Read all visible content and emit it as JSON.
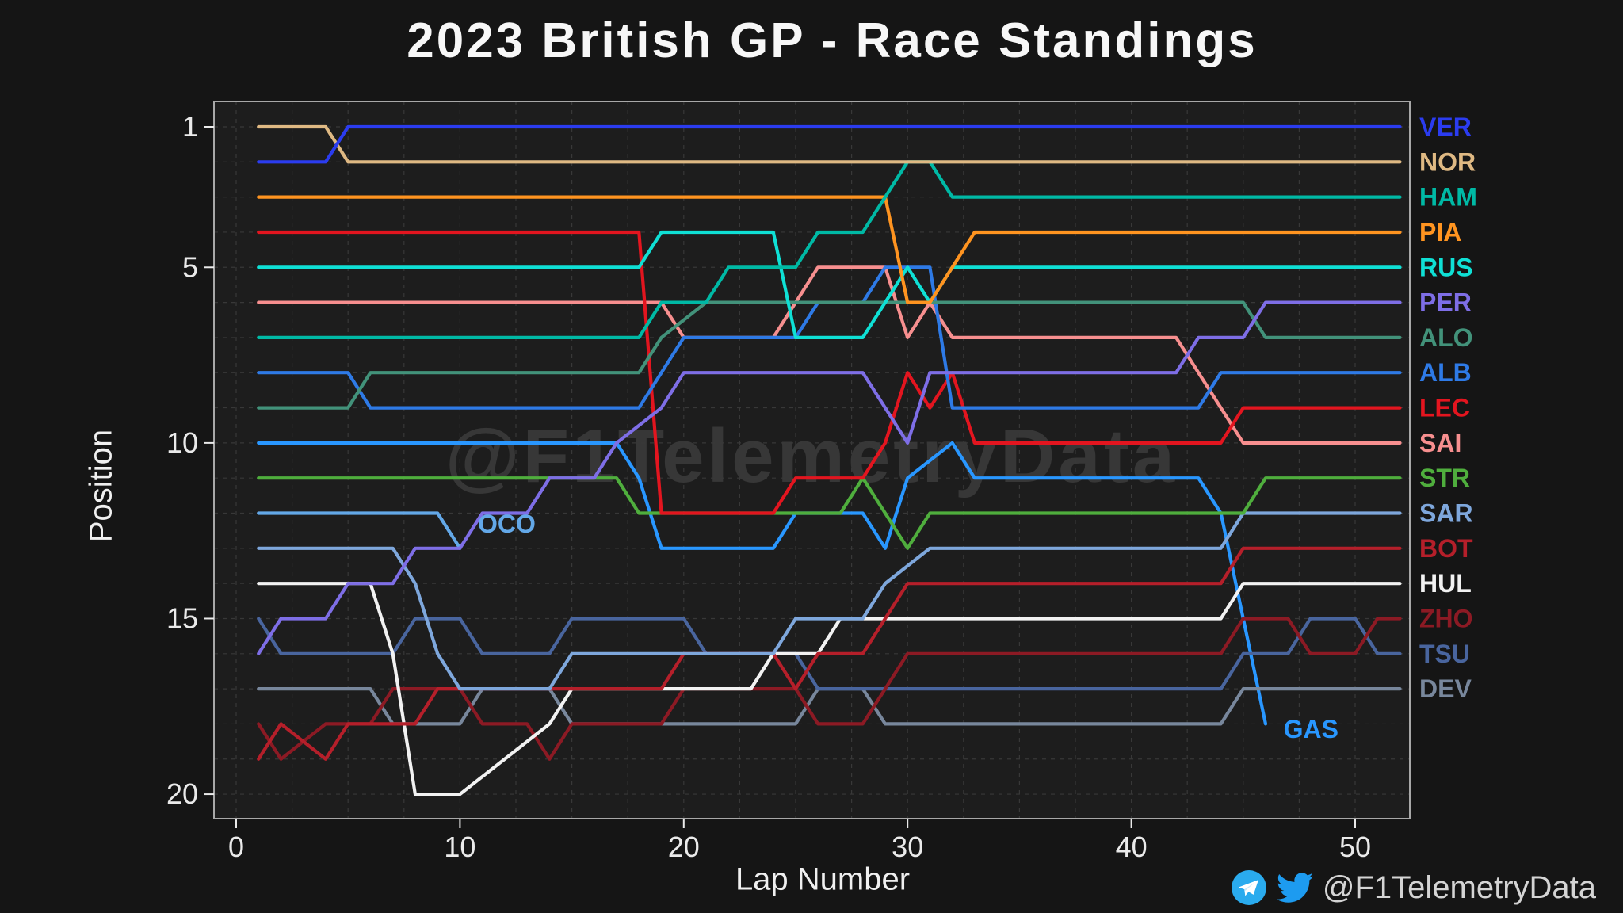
{
  "header": {
    "title": "2023 British GP - Race Standings"
  },
  "watermark": "@F1TelemetryData",
  "footer": {
    "handle": "@F1TelemetryData",
    "icons": [
      "telegram-icon",
      "twitter-icon"
    ]
  },
  "chart_data": {
    "type": "line",
    "title": "2023 British GP - Race Standings",
    "xlabel": "Lap Number",
    "ylabel": "Position",
    "x_ticks": [
      0,
      10,
      20,
      30,
      40,
      50
    ],
    "y_ticks": [
      1,
      5,
      10,
      15,
      20
    ],
    "xlim": [
      -1,
      52.4
    ],
    "ylim": [
      20.7,
      0.3
    ],
    "y_inverted": true,
    "total_laps": 52,
    "grid": {
      "h_step": 1,
      "v_step": 2.5,
      "color": "#383838",
      "dash": "5 6"
    },
    "layout": {
      "background": "#151515",
      "plot_background": "#1d1d1d",
      "frame_color": "#a8a8a8",
      "tick_color": "#eaeaea",
      "watermark_color": "#3a3a3a"
    },
    "series": [
      {
        "code": "VER",
        "color": "#2b3cf0",
        "final_position": 1,
        "points": [
          [
            1,
            2
          ],
          [
            4,
            2
          ],
          [
            5,
            1
          ],
          [
            52,
            1
          ]
        ]
      },
      {
        "code": "NOR",
        "color": "#dfb983",
        "final_position": 2,
        "points": [
          [
            1,
            1
          ],
          [
            4,
            1
          ],
          [
            5,
            2
          ],
          [
            52,
            2
          ]
        ]
      },
      {
        "code": "HAM",
        "color": "#00b9a5",
        "final_position": 3,
        "points": [
          [
            1,
            7
          ],
          [
            18,
            7
          ],
          [
            19,
            6
          ],
          [
            21,
            6
          ],
          [
            22,
            5
          ],
          [
            25,
            5
          ],
          [
            26,
            4
          ],
          [
            28,
            4
          ],
          [
            29,
            3
          ],
          [
            30,
            2
          ],
          [
            31,
            2
          ],
          [
            32,
            3
          ],
          [
            52,
            3
          ]
        ]
      },
      {
        "code": "PIA",
        "color": "#ff9420",
        "final_position": 4,
        "points": [
          [
            1,
            3
          ],
          [
            29,
            3
          ],
          [
            30,
            6
          ],
          [
            31,
            6
          ],
          [
            32,
            5
          ],
          [
            33,
            4
          ],
          [
            52,
            4
          ]
        ]
      },
      {
        "code": "RUS",
        "color": "#0fe0d5",
        "final_position": 5,
        "points": [
          [
            1,
            5
          ],
          [
            18,
            5
          ],
          [
            19,
            4
          ],
          [
            24,
            4
          ],
          [
            25,
            7
          ],
          [
            28,
            7
          ],
          [
            29,
            6
          ],
          [
            30,
            5
          ],
          [
            31,
            6
          ],
          [
            32,
            5
          ],
          [
            52,
            5
          ]
        ]
      },
      {
        "code": "PER",
        "color": "#7e6ee6",
        "final_position": 6,
        "points": [
          [
            1,
            16
          ],
          [
            2,
            15
          ],
          [
            4,
            15
          ],
          [
            5,
            14
          ],
          [
            7,
            14
          ],
          [
            8,
            13
          ],
          [
            10,
            13
          ],
          [
            11,
            12
          ],
          [
            13,
            12
          ],
          [
            14,
            11
          ],
          [
            16,
            11
          ],
          [
            17,
            10
          ],
          [
            19,
            9
          ],
          [
            20,
            8
          ],
          [
            28,
            8
          ],
          [
            29,
            9
          ],
          [
            30,
            10
          ],
          [
            31,
            8
          ],
          [
            42,
            8
          ],
          [
            43,
            7
          ],
          [
            45,
            7
          ],
          [
            46,
            6
          ],
          [
            52,
            6
          ]
        ]
      },
      {
        "code": "ALO",
        "color": "#42927a",
        "final_position": 7,
        "points": [
          [
            1,
            9
          ],
          [
            5,
            9
          ],
          [
            6,
            8
          ],
          [
            18,
            8
          ],
          [
            19,
            7
          ],
          [
            21,
            6
          ],
          [
            28,
            6
          ],
          [
            29,
            6
          ],
          [
            45,
            6
          ],
          [
            46,
            7
          ],
          [
            52,
            7
          ]
        ]
      },
      {
        "code": "ALB",
        "color": "#2e7ae6",
        "final_position": 8,
        "points": [
          [
            1,
            8
          ],
          [
            5,
            8
          ],
          [
            6,
            9
          ],
          [
            18,
            9
          ],
          [
            19,
            8
          ],
          [
            20,
            7
          ],
          [
            25,
            7
          ],
          [
            26,
            6
          ],
          [
            28,
            6
          ],
          [
            29,
            5
          ],
          [
            31,
            5
          ],
          [
            32,
            9
          ],
          [
            43,
            9
          ],
          [
            44,
            8
          ],
          [
            52,
            8
          ]
        ]
      },
      {
        "code": "LEC",
        "color": "#e3151f",
        "final_position": 9,
        "points": [
          [
            1,
            4
          ],
          [
            18,
            4
          ],
          [
            19,
            12
          ],
          [
            24,
            12
          ],
          [
            25,
            11
          ],
          [
            28,
            11
          ],
          [
            29,
            10
          ],
          [
            30,
            8
          ],
          [
            31,
            9
          ],
          [
            32,
            8
          ],
          [
            33,
            10
          ],
          [
            44,
            10
          ],
          [
            45,
            9
          ],
          [
            52,
            9
          ]
        ]
      },
      {
        "code": "SAI",
        "color": "#f78f8f",
        "final_position": 10,
        "points": [
          [
            1,
            6
          ],
          [
            19,
            6
          ],
          [
            20,
            7
          ],
          [
            24,
            7
          ],
          [
            25,
            6
          ],
          [
            26,
            5
          ],
          [
            29,
            5
          ],
          [
            30,
            7
          ],
          [
            31,
            6
          ],
          [
            32,
            7
          ],
          [
            42,
            7
          ],
          [
            43,
            8
          ],
          [
            44,
            9
          ],
          [
            45,
            10
          ],
          [
            52,
            10
          ]
        ]
      },
      {
        "code": "STR",
        "color": "#4fae3d",
        "final_position": 11,
        "points": [
          [
            1,
            11
          ],
          [
            17,
            11
          ],
          [
            18,
            12
          ],
          [
            27,
            12
          ],
          [
            28,
            11
          ],
          [
            29,
            12
          ],
          [
            30,
            13
          ],
          [
            31,
            12
          ],
          [
            45,
            12
          ],
          [
            46,
            11
          ],
          [
            52,
            11
          ]
        ]
      },
      {
        "code": "SAR",
        "color": "#7ea7dc",
        "final_position": 12,
        "points": [
          [
            1,
            13
          ],
          [
            7,
            13
          ],
          [
            8,
            14
          ],
          [
            9,
            16
          ],
          [
            10,
            17
          ],
          [
            14,
            17
          ],
          [
            15,
            16
          ],
          [
            24,
            16
          ],
          [
            25,
            15
          ],
          [
            28,
            15
          ],
          [
            29,
            14
          ],
          [
            31,
            13
          ],
          [
            44,
            13
          ],
          [
            45,
            12
          ],
          [
            52,
            12
          ]
        ]
      },
      {
        "code": "BOT",
        "color": "#b51f2a",
        "final_position": 13,
        "points": [
          [
            1,
            19
          ],
          [
            2,
            18
          ],
          [
            4,
            19
          ],
          [
            5,
            18
          ],
          [
            8,
            18
          ],
          [
            9,
            17
          ],
          [
            19,
            17
          ],
          [
            20,
            16
          ],
          [
            24,
            16
          ],
          [
            25,
            17
          ],
          [
            26,
            16
          ],
          [
            28,
            16
          ],
          [
            29,
            15
          ],
          [
            30,
            14
          ],
          [
            44,
            14
          ],
          [
            45,
            13
          ],
          [
            52,
            13
          ]
        ]
      },
      {
        "code": "HUL",
        "color": "#f2f2f2",
        "final_position": 14,
        "points": [
          [
            1,
            14
          ],
          [
            6,
            14
          ],
          [
            7,
            16
          ],
          [
            8,
            20
          ],
          [
            10,
            20
          ],
          [
            12,
            19
          ],
          [
            14,
            18
          ],
          [
            15,
            17
          ],
          [
            23,
            17
          ],
          [
            24,
            16
          ],
          [
            26,
            16
          ],
          [
            27,
            15
          ],
          [
            31,
            15
          ],
          [
            44,
            15
          ],
          [
            45,
            14
          ],
          [
            52,
            14
          ]
        ]
      },
      {
        "code": "ZHO",
        "color": "#8c1a24",
        "final_position": 15,
        "points": [
          [
            1,
            18
          ],
          [
            2,
            19
          ],
          [
            4,
            18
          ],
          [
            6,
            18
          ],
          [
            7,
            17
          ],
          [
            10,
            17
          ],
          [
            11,
            18
          ],
          [
            13,
            18
          ],
          [
            14,
            19
          ],
          [
            15,
            18
          ],
          [
            19,
            18
          ],
          [
            20,
            17
          ],
          [
            25,
            17
          ],
          [
            26,
            18
          ],
          [
            28,
            18
          ],
          [
            29,
            17
          ],
          [
            30,
            16
          ],
          [
            44,
            16
          ],
          [
            45,
            15
          ],
          [
            47,
            15
          ],
          [
            48,
            16
          ],
          [
            50,
            16
          ],
          [
            51,
            15
          ],
          [
            52,
            15
          ]
        ]
      },
      {
        "code": "TSU",
        "color": "#49659e",
        "final_position": 16,
        "points": [
          [
            1,
            15
          ],
          [
            2,
            16
          ],
          [
            7,
            16
          ],
          [
            8,
            15
          ],
          [
            10,
            15
          ],
          [
            11,
            16
          ],
          [
            14,
            16
          ],
          [
            15,
            15
          ],
          [
            20,
            15
          ],
          [
            21,
            16
          ],
          [
            25,
            16
          ],
          [
            26,
            17
          ],
          [
            29,
            17
          ],
          [
            44,
            17
          ],
          [
            45,
            16
          ],
          [
            47,
            16
          ],
          [
            48,
            15
          ],
          [
            50,
            15
          ],
          [
            51,
            16
          ],
          [
            52,
            16
          ]
        ]
      },
      {
        "code": "DEV",
        "color": "#78879c",
        "final_position": 17,
        "points": [
          [
            1,
            17
          ],
          [
            6,
            17
          ],
          [
            7,
            18
          ],
          [
            10,
            18
          ],
          [
            11,
            17
          ],
          [
            14,
            17
          ],
          [
            15,
            18
          ],
          [
            25,
            18
          ],
          [
            26,
            17
          ],
          [
            28,
            17
          ],
          [
            29,
            18
          ],
          [
            44,
            18
          ],
          [
            45,
            17
          ],
          [
            52,
            17
          ]
        ]
      },
      {
        "code": "GAS",
        "color": "#2997ff",
        "status": "retired",
        "retired_lap": 46,
        "points": [
          [
            1,
            10
          ],
          [
            17,
            10
          ],
          [
            18,
            11
          ],
          [
            19,
            13
          ],
          [
            24,
            13
          ],
          [
            25,
            12
          ],
          [
            28,
            12
          ],
          [
            29,
            13
          ],
          [
            30,
            11
          ],
          [
            32,
            10
          ],
          [
            33,
            11
          ],
          [
            43,
            11
          ],
          [
            44,
            12
          ],
          [
            45,
            15
          ],
          [
            46,
            18
          ]
        ],
        "label_inline": true,
        "label_at": [
          46.8,
          18.15
        ]
      },
      {
        "code": "OCO",
        "color": "#63a8e8",
        "status": "retired",
        "retired_lap": 10,
        "points": [
          [
            1,
            12
          ],
          [
            9,
            12
          ],
          [
            10,
            13
          ]
        ],
        "label_inline": true,
        "label_at": [
          10.8,
          12.3
        ]
      }
    ]
  }
}
